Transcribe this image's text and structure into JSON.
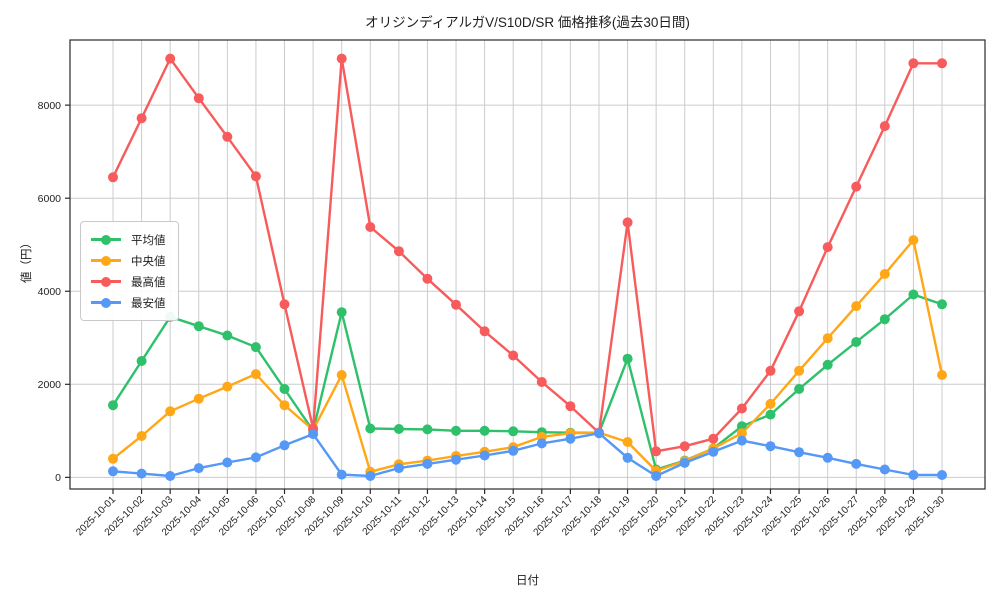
{
  "figure": {
    "title": "オリジンディアルガV/S10D/SR 価格推移(過去30日間)",
    "xlabel": "日付",
    "ylabel": "値（円）"
  },
  "chart_data": {
    "type": "line",
    "title": "オリジンディアルガV/S10D/SR 価格推移(過去30日間)",
    "xlabel": "日付",
    "ylabel": "値（円）",
    "grid": true,
    "legend_position": "center-left",
    "marker": "circle",
    "ylim": [
      -250,
      9400
    ],
    "yticks": [
      0,
      2000,
      4000,
      6000,
      8000
    ],
    "categories": [
      "2025-10-01",
      "2025-10-02",
      "2025-10-03",
      "2025-10-04",
      "2025-10-05",
      "2025-10-06",
      "2025-10-07",
      "2025-10-08",
      "2025-10-09",
      "2025-10-10",
      "2025-10-11",
      "2025-10-12",
      "2025-10-13",
      "2025-10-14",
      "2025-10-15",
      "2025-10-16",
      "2025-10-17",
      "2025-10-18",
      "2025-10-19",
      "2025-10-20",
      "2025-10-21",
      "2025-10-22",
      "2025-10-23",
      "2025-10-24",
      "2025-10-25",
      "2025-10-26",
      "2025-10-27",
      "2025-10-28",
      "2025-10-29",
      "2025-10-30"
    ],
    "series": [
      {
        "key": "avg",
        "name": "平均値",
        "color": "#2ec06a",
        "values": [
          1550,
          2500,
          3450,
          3250,
          3050,
          2800,
          1900,
          1000,
          3550,
          1050,
          1040,
          1030,
          1000,
          1000,
          990,
          970,
          960,
          960,
          2550,
          170,
          360,
          620,
          1100,
          1350,
          1900,
          2420,
          2910,
          3400,
          3930,
          3720
        ]
      },
      {
        "key": "median",
        "name": "中央値",
        "color": "#ffa716",
        "values": [
          400,
          890,
          1420,
          1690,
          1950,
          2220,
          1550,
          1020,
          2200,
          120,
          280,
          360,
          460,
          550,
          650,
          870,
          950,
          960,
          760,
          140,
          350,
          620,
          950,
          1580,
          2290,
          2990,
          3680,
          4370,
          5100,
          2200
        ]
      },
      {
        "key": "max",
        "name": "最高値",
        "color": "#f75b5b",
        "values": [
          6450,
          7720,
          9000,
          8150,
          7320,
          6470,
          3720,
          1050,
          9000,
          5380,
          4860,
          4270,
          3710,
          3140,
          2620,
          2050,
          1530,
          960,
          5480,
          560,
          670,
          830,
          1480,
          2290,
          3570,
          4950,
          6250,
          7550,
          8900,
          8900
        ]
      },
      {
        "key": "min",
        "name": "最安値",
        "color": "#5598f6",
        "values": [
          130,
          80,
          30,
          200,
          320,
          430,
          690,
          930,
          60,
          30,
          200,
          290,
          380,
          470,
          570,
          730,
          830,
          950,
          420,
          30,
          310,
          550,
          790,
          670,
          540,
          420,
          290,
          170,
          50,
          50
        ]
      }
    ]
  },
  "style": {
    "grid_color": "#cccccc",
    "spine_color": "#2a2a2a",
    "text_color": "#1f1f1f",
    "background": "#ffffff"
  }
}
